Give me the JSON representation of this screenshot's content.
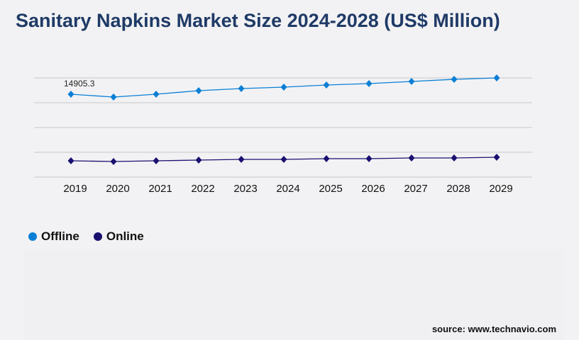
{
  "chart_data": {
    "type": "line",
    "title": "Sanitary Napkins Market Size 2024-2028 (US$ Million)",
    "xlabel": "",
    "ylabel": "",
    "categories": [
      "2019",
      "2020",
      "2021",
      "2022",
      "2023",
      "2024",
      "2025",
      "2026",
      "2027",
      "2028",
      "2029"
    ],
    "series": [
      {
        "name": "Offline",
        "color": "#0a7fd6",
        "values": [
          14905.3,
          14396,
          14905,
          15542,
          15924,
          16179,
          16561,
          16816,
          17198,
          17580,
          17835
        ]
      },
      {
        "name": "Online",
        "color": "#1a1070",
        "values": [
          2930,
          2803,
          2930,
          3057,
          3185,
          3185,
          3312,
          3312,
          3440,
          3440,
          3567
        ]
      }
    ],
    "data_labels": [
      {
        "series": "Offline",
        "category": "2019",
        "text": "14905.3"
      }
    ],
    "ylim": [
      0,
      17836
    ],
    "grid": true,
    "y_tick_labels_shown": false,
    "legend_position": "bottom-left"
  },
  "source": "source: www.technavio.com"
}
